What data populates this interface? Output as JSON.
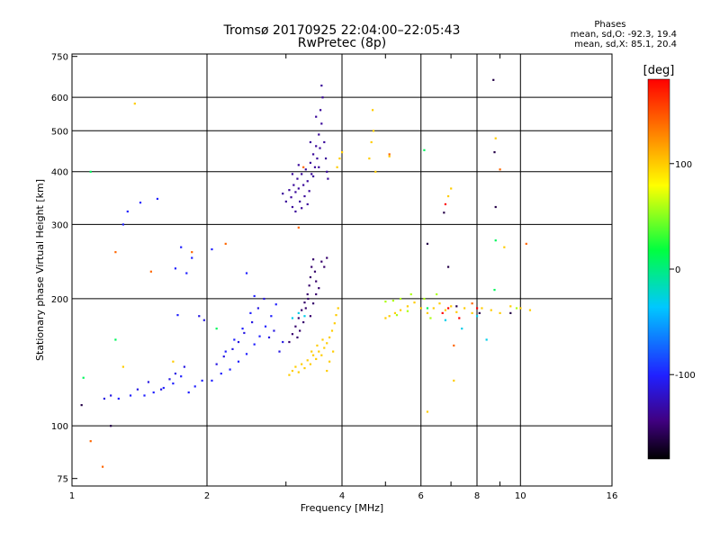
{
  "header": {
    "title_line1": "Tromsø 20170925 22:04:00–22:05:43",
    "title_line2": "RwPretec (8p)"
  },
  "phase_stats": {
    "title": "Phases",
    "line_o": "mean, sd,O: -92.3, 19.4",
    "line_x": "mean, sd,X:  85.1, 20.4"
  },
  "chart_data": {
    "type": "scatter",
    "xlabel": "Frequency [MHz]",
    "ylabel": "Stationary phase Virtual Height [km]",
    "x_scale": "log",
    "y_scale": "log",
    "xlim": [
      1,
      16
    ],
    "ylim": [
      72,
      760
    ],
    "x_ticks": [
      1,
      2,
      4,
      6,
      8,
      10,
      16
    ],
    "y_ticks": [
      75,
      100,
      200,
      300,
      400,
      500,
      600,
      750
    ],
    "grid": true,
    "colorbar": {
      "label": "[deg]",
      "range": [
        -180,
        180
      ],
      "ticks": [
        100,
        0,
        -100
      ]
    },
    "series": [
      {
        "phase_deg": -100,
        "points": [
          [
            1.3,
            300
          ],
          [
            1.33,
            322
          ],
          [
            1.42,
            338
          ],
          [
            1.55,
            345
          ],
          [
            1.7,
            236
          ],
          [
            1.72,
            183
          ],
          [
            1.75,
            265
          ],
          [
            1.8,
            230
          ],
          [
            2.05,
            262
          ],
          [
            2.45,
            230
          ],
          [
            2.55,
            203
          ],
          [
            1.85,
            250
          ],
          [
            1.27,
            116
          ],
          [
            1.35,
            118
          ],
          [
            1.45,
            118
          ],
          [
            1.52,
            120
          ],
          [
            1.6,
            123
          ],
          [
            1.68,
            126
          ],
          [
            1.75,
            131
          ],
          [
            1.82,
            120
          ],
          [
            1.88,
            124
          ],
          [
            1.95,
            128
          ],
          [
            2.05,
            128
          ],
          [
            2.15,
            133
          ],
          [
            2.25,
            136
          ],
          [
            2.35,
            142
          ],
          [
            2.45,
            148
          ],
          [
            2.55,
            156
          ],
          [
            2.62,
            163
          ],
          [
            2.7,
            172
          ],
          [
            2.78,
            182
          ],
          [
            2.85,
            194
          ],
          [
            2.4,
            170
          ],
          [
            2.5,
            185
          ],
          [
            2.3,
            160
          ],
          [
            2.2,
            150
          ]
        ]
      },
      {
        "phase_deg": -110,
        "points": [
          [
            1.18,
            116
          ],
          [
            1.22,
            118
          ],
          [
            1.4,
            122
          ],
          [
            1.48,
            127
          ],
          [
            1.58,
            122
          ],
          [
            1.65,
            129
          ],
          [
            1.7,
            133
          ],
          [
            1.78,
            138
          ],
          [
            1.92,
            182
          ],
          [
            1.97,
            178
          ],
          [
            2.1,
            140
          ],
          [
            2.18,
            146
          ],
          [
            2.28,
            152
          ],
          [
            2.35,
            158
          ],
          [
            2.42,
            166
          ],
          [
            2.52,
            176
          ],
          [
            2.6,
            190
          ],
          [
            2.68,
            200
          ],
          [
            2.75,
            162
          ],
          [
            2.82,
            168
          ],
          [
            2.9,
            150
          ],
          [
            2.95,
            158
          ]
        ]
      },
      {
        "phase_deg": -135,
        "points": [
          [
            2.95,
            355
          ],
          [
            3.0,
            340
          ],
          [
            3.05,
            362
          ],
          [
            3.08,
            348
          ],
          [
            3.12,
            372
          ],
          [
            3.15,
            358
          ],
          [
            3.18,
            385
          ],
          [
            3.2,
            365
          ],
          [
            3.22,
            340
          ],
          [
            3.25,
            395
          ],
          [
            3.28,
            372
          ],
          [
            3.3,
            350
          ],
          [
            3.32,
            405
          ],
          [
            3.35,
            380
          ],
          [
            3.38,
            360
          ],
          [
            3.4,
            420
          ],
          [
            3.42,
            395
          ],
          [
            3.45,
            440
          ],
          [
            3.48,
            410
          ],
          [
            3.5,
            460
          ],
          [
            3.52,
            430
          ],
          [
            3.55,
            490
          ],
          [
            3.57,
            455
          ],
          [
            3.6,
            520
          ],
          [
            3.58,
            560
          ],
          [
            3.62,
            600
          ],
          [
            3.65,
            470
          ],
          [
            3.68,
            430
          ],
          [
            3.7,
            400
          ],
          [
            3.72,
            385
          ],
          [
            3.55,
            410
          ],
          [
            3.45,
            390
          ],
          [
            3.35,
            335
          ],
          [
            3.25,
            328
          ],
          [
            3.15,
            322
          ],
          [
            3.1,
            330
          ],
          [
            3.6,
            640
          ],
          [
            3.5,
            540
          ],
          [
            3.4,
            470
          ],
          [
            3.2,
            415
          ],
          [
            3.1,
            395
          ]
        ]
      },
      {
        "phase_deg": -150,
        "points": [
          [
            3.05,
            158
          ],
          [
            3.1,
            165
          ],
          [
            3.15,
            172
          ],
          [
            3.2,
            180
          ],
          [
            3.25,
            188
          ],
          [
            3.3,
            196
          ],
          [
            3.35,
            205
          ],
          [
            3.38,
            215
          ],
          [
            3.4,
            225
          ],
          [
            3.42,
            238
          ],
          [
            3.45,
            248
          ],
          [
            3.48,
            232
          ],
          [
            3.5,
            220
          ],
          [
            3.55,
            212
          ],
          [
            3.28,
            176
          ],
          [
            3.22,
            168
          ],
          [
            3.18,
            162
          ],
          [
            3.32,
            190
          ],
          [
            3.36,
            200
          ],
          [
            3.4,
            182
          ],
          [
            3.45,
            195
          ],
          [
            3.5,
            205
          ],
          [
            3.6,
            245
          ],
          [
            3.65,
            238
          ],
          [
            3.7,
            250
          ]
        ]
      },
      {
        "phase_deg": 100,
        "points": [
          [
            3.05,
            132
          ],
          [
            3.1,
            135
          ],
          [
            3.15,
            138
          ],
          [
            3.2,
            134
          ],
          [
            3.25,
            140
          ],
          [
            3.3,
            137
          ],
          [
            3.35,
            143
          ],
          [
            3.4,
            140
          ],
          [
            3.45,
            147
          ],
          [
            3.5,
            144
          ],
          [
            3.55,
            150
          ],
          [
            3.6,
            147
          ],
          [
            3.65,
            153
          ],
          [
            3.7,
            157
          ],
          [
            3.75,
            162
          ],
          [
            3.8,
            168
          ],
          [
            3.85,
            175
          ],
          [
            3.88,
            183
          ],
          [
            3.92,
            190
          ],
          [
            3.62,
            160
          ],
          [
            3.52,
            155
          ],
          [
            3.42,
            150
          ],
          [
            3.75,
            142
          ],
          [
            3.82,
            150
          ],
          [
            3.7,
            135
          ],
          [
            3.9,
            410
          ],
          [
            3.95,
            430
          ],
          [
            4.0,
            445
          ],
          [
            4.6,
            430
          ],
          [
            4.65,
            470
          ],
          [
            4.7,
            500
          ],
          [
            4.68,
            560
          ],
          [
            4.75,
            400
          ],
          [
            5.1,
            435
          ],
          [
            5.0,
            180
          ],
          [
            5.1,
            182
          ],
          [
            5.25,
            185
          ],
          [
            5.4,
            188
          ],
          [
            5.6,
            192
          ],
          [
            5.8,
            196
          ],
          [
            6.0,
            190
          ],
          [
            6.2,
            185
          ],
          [
            6.4,
            190
          ],
          [
            6.6,
            195
          ],
          [
            6.8,
            188
          ],
          [
            7.0,
            192
          ],
          [
            7.2,
            186
          ],
          [
            7.5,
            190
          ],
          [
            7.8,
            185
          ],
          [
            8.2,
            190
          ],
          [
            8.6,
            188
          ],
          [
            9.0,
            185
          ],
          [
            9.5,
            192
          ],
          [
            10.0,
            190
          ],
          [
            10.5,
            188
          ],
          [
            6.9,
            350
          ],
          [
            7.0,
            365
          ],
          [
            8.8,
            480
          ],
          [
            9.2,
            265
          ],
          [
            6.2,
            108
          ],
          [
            7.1,
            128
          ],
          [
            1.3,
            138
          ],
          [
            1.38,
            580
          ],
          [
            1.68,
            142
          ]
        ]
      },
      {
        "phase_deg": 60,
        "points": [
          [
            5.0,
            197
          ],
          [
            5.2,
            198
          ],
          [
            5.4,
            200
          ],
          [
            5.7,
            205
          ],
          [
            6.1,
            200
          ],
          [
            6.5,
            205
          ],
          [
            5.3,
            183
          ],
          [
            5.6,
            187
          ],
          [
            6.3,
            180
          ],
          [
            9.8,
            190
          ]
        ]
      },
      {
        "phase_deg": -30,
        "points": [
          [
            3.1,
            180
          ],
          [
            3.2,
            185
          ],
          [
            3.3,
            182
          ],
          [
            6.8,
            178
          ],
          [
            7.4,
            170
          ],
          [
            8.0,
            182
          ],
          [
            8.4,
            160
          ]
        ]
      },
      {
        "phase_deg": 180,
        "points": [
          [
            6.7,
            185
          ],
          [
            6.9,
            190
          ],
          [
            6.8,
            335
          ],
          [
            7.3,
            180
          ],
          [
            8.0,
            190
          ]
        ]
      },
      {
        "phase_deg": 140,
        "points": [
          [
            1.1,
            92
          ],
          [
            1.17,
            80
          ],
          [
            1.25,
            258
          ],
          [
            1.5,
            232
          ],
          [
            1.85,
            258
          ],
          [
            2.2,
            270
          ],
          [
            3.2,
            295
          ],
          [
            3.28,
            410
          ],
          [
            5.1,
            440
          ],
          [
            7.8,
            195
          ],
          [
            7.1,
            155
          ],
          [
            10.3,
            270
          ],
          [
            9.0,
            405
          ]
        ]
      },
      {
        "phase_deg": -160,
        "points": [
          [
            1.05,
            112
          ],
          [
            1.22,
            100
          ],
          [
            6.2,
            270
          ],
          [
            6.75,
            320
          ],
          [
            6.9,
            238
          ],
          [
            7.2,
            192
          ],
          [
            8.7,
            660
          ],
          [
            8.75,
            445
          ],
          [
            8.8,
            330
          ],
          [
            9.5,
            185
          ],
          [
            8.1,
            185
          ]
        ]
      },
      {
        "phase_deg": 10,
        "points": [
          [
            1.06,
            130
          ],
          [
            1.1,
            400
          ],
          [
            1.25,
            160
          ],
          [
            2.1,
            170
          ],
          [
            6.1,
            450
          ],
          [
            8.8,
            275
          ],
          [
            8.75,
            210
          ],
          [
            6.2,
            190
          ]
        ]
      }
    ]
  }
}
